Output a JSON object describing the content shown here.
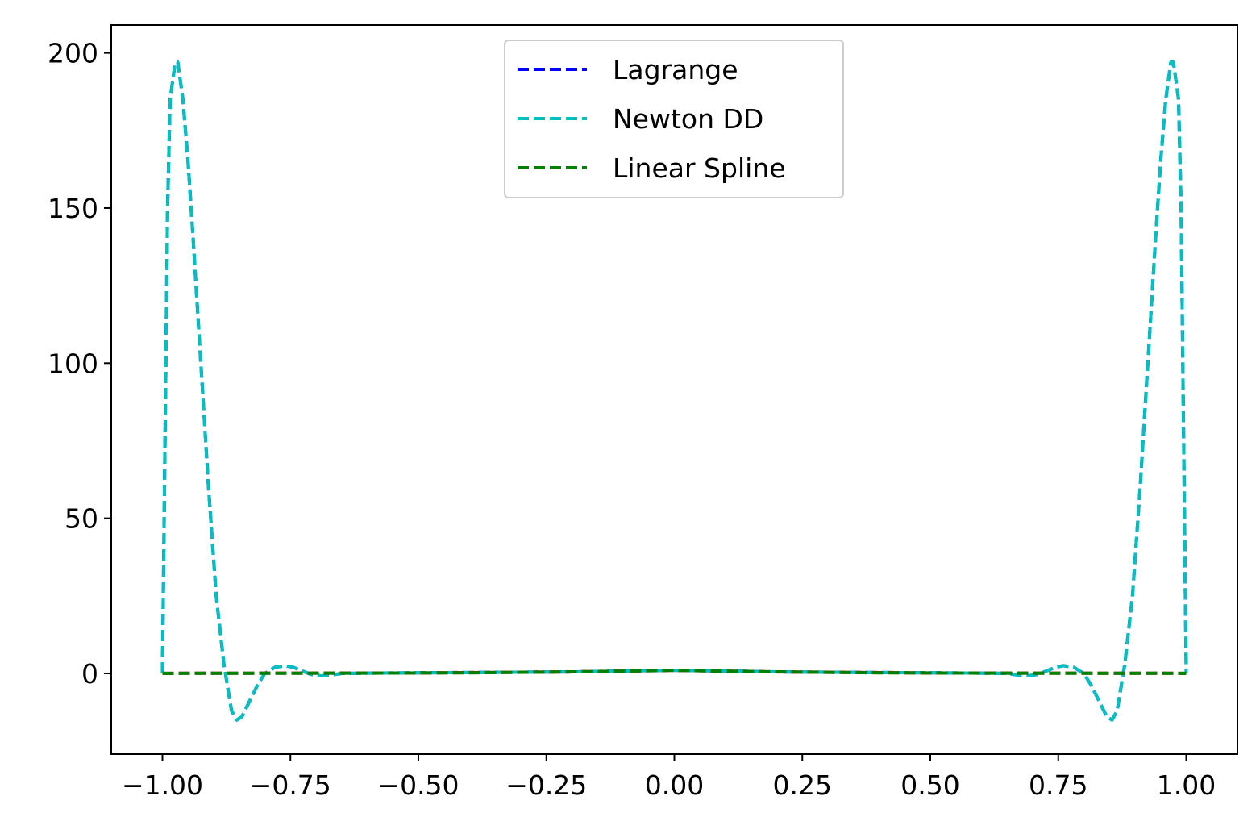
{
  "chart_data": {
    "type": "line",
    "title": "",
    "xlabel": "",
    "ylabel": "",
    "xlim": [
      -1.1,
      1.1
    ],
    "ylim": [
      -26,
      209
    ],
    "xticks": [
      -1.0,
      -0.75,
      -0.5,
      -0.25,
      0.0,
      0.25,
      0.5,
      0.75,
      1.0
    ],
    "xtick_labels": [
      "−1.00",
      "−0.75",
      "−0.50",
      "−0.25",
      "0.00",
      "0.25",
      "0.50",
      "0.75",
      "1.00"
    ],
    "yticks": [
      0,
      50,
      100,
      150,
      200
    ],
    "ytick_labels": [
      "0",
      "50",
      "100",
      "150",
      "200"
    ],
    "grid": false,
    "legend": {
      "location": "upper center",
      "entries": [
        "Lagrange",
        "Newton DD",
        "Linear Spline"
      ]
    },
    "series": [
      {
        "name": "Lagrange",
        "color": "#0000ff",
        "style": "dashed",
        "x": [
          -1.0,
          -0.99,
          -0.985,
          -0.975,
          -0.97,
          -0.96,
          -0.95,
          -0.94,
          -0.925,
          -0.91,
          -0.895,
          -0.88,
          -0.865,
          -0.855,
          -0.845,
          -0.83,
          -0.815,
          -0.8,
          -0.78,
          -0.76,
          -0.745,
          -0.73,
          -0.71,
          -0.69,
          -0.67,
          -0.65,
          -0.6,
          -0.5,
          -0.4,
          -0.3,
          -0.2,
          -0.1,
          0.0,
          0.1,
          0.2,
          0.3,
          0.4,
          0.5,
          0.6,
          0.65,
          0.67,
          0.69,
          0.71,
          0.73,
          0.745,
          0.76,
          0.78,
          0.8,
          0.815,
          0.83,
          0.845,
          0.855,
          0.865,
          0.88,
          0.895,
          0.91,
          0.925,
          0.94,
          0.95,
          0.96,
          0.97,
          0.975,
          0.985,
          0.99,
          1.0
        ],
        "y": [
          0,
          150,
          185,
          197,
          197,
          185,
          165,
          140,
          100,
          60,
          25,
          3,
          -12,
          -15,
          -14,
          -9,
          -4,
          0,
          2,
          2.5,
          2,
          1,
          -0.3,
          -0.8,
          -0.5,
          0,
          0.1,
          0.2,
          0.3,
          0.4,
          0.5,
          0.8,
          1,
          0.8,
          0.5,
          0.4,
          0.3,
          0.2,
          0.1,
          0,
          -0.5,
          -0.8,
          -0.3,
          1,
          2,
          2.5,
          2,
          0,
          -4,
          -9,
          -14,
          -15,
          -12,
          3,
          25,
          60,
          100,
          140,
          165,
          185,
          197,
          197,
          185,
          150,
          0
        ]
      },
      {
        "name": "Newton DD",
        "color": "#00bfbf",
        "style": "dashed",
        "x": [
          -1.0,
          -0.99,
          -0.985,
          -0.975,
          -0.97,
          -0.96,
          -0.95,
          -0.94,
          -0.925,
          -0.91,
          -0.895,
          -0.88,
          -0.865,
          -0.855,
          -0.845,
          -0.83,
          -0.815,
          -0.8,
          -0.78,
          -0.76,
          -0.745,
          -0.73,
          -0.71,
          -0.69,
          -0.67,
          -0.65,
          -0.6,
          -0.5,
          -0.4,
          -0.3,
          -0.2,
          -0.1,
          0.0,
          0.1,
          0.2,
          0.3,
          0.4,
          0.5,
          0.6,
          0.65,
          0.67,
          0.69,
          0.71,
          0.73,
          0.745,
          0.76,
          0.78,
          0.8,
          0.815,
          0.83,
          0.845,
          0.855,
          0.865,
          0.88,
          0.895,
          0.91,
          0.925,
          0.94,
          0.95,
          0.96,
          0.97,
          0.975,
          0.985,
          0.99,
          1.0
        ],
        "y": [
          0,
          150,
          185,
          197,
          197,
          185,
          165,
          140,
          100,
          60,
          25,
          3,
          -12,
          -15,
          -14,
          -9,
          -4,
          0,
          2,
          2.5,
          2,
          1,
          -0.3,
          -0.8,
          -0.5,
          0,
          0.1,
          0.2,
          0.3,
          0.4,
          0.5,
          0.8,
          1,
          0.8,
          0.5,
          0.4,
          0.3,
          0.2,
          0.1,
          0,
          -0.5,
          -0.8,
          -0.3,
          1,
          2,
          2.5,
          2,
          0,
          -4,
          -9,
          -14,
          -15,
          -12,
          3,
          25,
          60,
          100,
          140,
          165,
          185,
          197,
          197,
          185,
          150,
          0
        ]
      },
      {
        "name": "",
        "color": "#ff0000",
        "style": "dashed",
        "x": [
          -1.0,
          -0.5,
          -0.2,
          0.0,
          0.2,
          0.5,
          1.0
        ],
        "y": [
          0.04,
          0.14,
          0.5,
          1.0,
          0.5,
          0.14,
          0.04
        ]
      },
      {
        "name": "Linear Spline",
        "color": "#008000",
        "style": "dashed",
        "x": [
          -1.0,
          -0.8,
          -0.6,
          -0.4,
          -0.2,
          0.0,
          0.2,
          0.4,
          0.6,
          0.8,
          1.0
        ],
        "y": [
          0.04,
          0.06,
          0.1,
          0.2,
          0.5,
          1.0,
          0.5,
          0.2,
          0.1,
          0.06,
          0.04
        ]
      }
    ]
  }
}
